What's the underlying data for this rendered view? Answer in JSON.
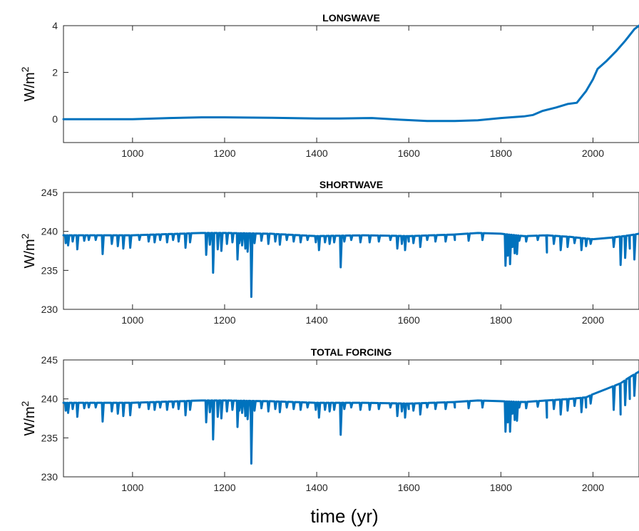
{
  "figure": {
    "xlabel": "time (yr)"
  },
  "colors": {
    "series": "#0072BD",
    "axis": "#262626",
    "background": "#ffffff"
  },
  "chart_data": [
    {
      "type": "line",
      "title": "LONGWAVE",
      "ylabel": "W/m",
      "ylabel_sup": "2",
      "xlim": [
        850,
        2100
      ],
      "ylim": [
        -1,
        4
      ],
      "xticks": [
        1000,
        1200,
        1400,
        1600,
        1800,
        2000
      ],
      "yticks": [
        0,
        2,
        4
      ],
      "grid": false,
      "legend": "none",
      "series": [
        {
          "baseline": [
            [
              850,
              0
            ],
            [
              1000,
              0
            ],
            [
              1080,
              0.05
            ],
            [
              1150,
              0.08
            ],
            [
              1200,
              0.08
            ],
            [
              1300,
              0.06
            ],
            [
              1400,
              0.03
            ],
            [
              1450,
              0.03
            ],
            [
              1520,
              0.05
            ],
            [
              1580,
              -0.02
            ],
            [
              1640,
              -0.08
            ],
            [
              1700,
              -0.08
            ],
            [
              1750,
              -0.05
            ],
            [
              1800,
              0.05
            ],
            [
              1850,
              0.12
            ],
            [
              1870,
              0.18
            ],
            [
              1890,
              0.35
            ],
            [
              1920,
              0.5
            ],
            [
              1945,
              0.65
            ],
            [
              1965,
              0.7
            ],
            [
              1985,
              1.2
            ],
            [
              2000,
              1.7
            ],
            [
              2010,
              2.15
            ],
            [
              2030,
              2.5
            ],
            [
              2050,
              2.9
            ],
            [
              2070,
              3.35
            ],
            [
              2090,
              3.85
            ],
            [
              2100,
              4.0
            ]
          ],
          "dips": []
        }
      ]
    },
    {
      "type": "line",
      "title": "SHORTWAVE",
      "ylabel": "W/m",
      "ylabel_sup": "2",
      "xlim": [
        850,
        2100
      ],
      "ylim": [
        230,
        245
      ],
      "xticks": [
        1000,
        1200,
        1400,
        1600,
        1800,
        2000
      ],
      "yticks": [
        230,
        235,
        240,
        245
      ],
      "grid": false,
      "legend": "none",
      "series": [
        {
          "baseline": [
            [
              850,
              239.5
            ],
            [
              1000,
              239.5
            ],
            [
              1150,
              239.8
            ],
            [
              1200,
              239.8
            ],
            [
              1300,
              239.7
            ],
            [
              1400,
              239.4
            ],
            [
              1500,
              239.5
            ],
            [
              1600,
              239.4
            ],
            [
              1700,
              239.6
            ],
            [
              1750,
              239.8
            ],
            [
              1800,
              239.7
            ],
            [
              1850,
              239.4
            ],
            [
              1900,
              239.5
            ],
            [
              1950,
              239.3
            ],
            [
              2000,
              239.0
            ],
            [
              2040,
              239.2
            ],
            [
              2080,
              239.5
            ],
            [
              2100,
              239.7
            ]
          ],
          "dips": [
            [
              855,
              238.5
            ],
            [
              860,
              238.2
            ],
            [
              870,
              238.7
            ],
            [
              880,
              237.7
            ],
            [
              895,
              238.8
            ],
            [
              905,
              238.9
            ],
            [
              920,
              238.9
            ],
            [
              935,
              237.1
            ],
            [
              955,
              238.4
            ],
            [
              968,
              238.1
            ],
            [
              980,
              237.8
            ],
            [
              995,
              237.9
            ],
            [
              1015,
              238.9
            ],
            [
              1035,
              238.7
            ],
            [
              1048,
              238.6
            ],
            [
              1060,
              238.9
            ],
            [
              1075,
              238.6
            ],
            [
              1088,
              238.9
            ],
            [
              1100,
              238.7
            ],
            [
              1115,
              237.9
            ],
            [
              1125,
              238.6
            ],
            [
              1160,
              237.0
            ],
            [
              1168,
              238.3
            ],
            [
              1175,
              234.7
            ],
            [
              1185,
              237.7
            ],
            [
              1193,
              237.5
            ],
            [
              1205,
              238.4
            ],
            [
              1217,
              238.6
            ],
            [
              1228,
              236.4
            ],
            [
              1232,
              238.5
            ],
            [
              1238,
              238.2
            ],
            [
              1245,
              237.8
            ],
            [
              1250,
              237.4
            ],
            [
              1258,
              231.6
            ],
            [
              1265,
              238.5
            ],
            [
              1280,
              238.8
            ],
            [
              1295,
              238.4
            ],
            [
              1310,
              238.7
            ],
            [
              1320,
              238.3
            ],
            [
              1335,
              238.9
            ],
            [
              1350,
              238.7
            ],
            [
              1365,
              238.6
            ],
            [
              1380,
              238.9
            ],
            [
              1398,
              238.6
            ],
            [
              1405,
              237.6
            ],
            [
              1418,
              238.6
            ],
            [
              1428,
              238.4
            ],
            [
              1438,
              238.6
            ],
            [
              1452,
              235.4
            ],
            [
              1460,
              238.7
            ],
            [
              1475,
              238.9
            ],
            [
              1495,
              238.6
            ],
            [
              1515,
              238.6
            ],
            [
              1535,
              238.7
            ],
            [
              1560,
              238.9
            ],
            [
              1575,
              237.8
            ],
            [
              1585,
              238.4
            ],
            [
              1592,
              237.6
            ],
            [
              1600,
              238.7
            ],
            [
              1610,
              238.5
            ],
            [
              1625,
              238.0
            ],
            [
              1640,
              238.9
            ],
            [
              1658,
              238.7
            ],
            [
              1680,
              238.7
            ],
            [
              1700,
              238.9
            ],
            [
              1730,
              238.8
            ],
            [
              1760,
              238.9
            ],
            [
              1810,
              235.6
            ],
            [
              1815,
              236.9
            ],
            [
              1820,
              235.8
            ],
            [
              1825,
              238.0
            ],
            [
              1830,
              237.2
            ],
            [
              1835,
              237.1
            ],
            [
              1840,
              238.8
            ],
            [
              1855,
              238.7
            ],
            [
              1880,
              238.9
            ],
            [
              1900,
              237.3
            ],
            [
              1915,
              238.4
            ],
            [
              1930,
              237.6
            ],
            [
              1945,
              238.0
            ],
            [
              1960,
              238.5
            ],
            [
              1975,
              237.6
            ],
            [
              1985,
              238.1
            ],
            [
              1995,
              238.4
            ],
            [
              2045,
              238.0
            ],
            [
              2060,
              235.7
            ],
            [
              2070,
              236.6
            ],
            [
              2080,
              237.8
            ],
            [
              2090,
              236.4
            ]
          ]
        }
      ]
    },
    {
      "type": "line",
      "title": "TOTAL FORCING",
      "ylabel": "W/m",
      "ylabel_sup": "2",
      "xlim": [
        850,
        2100
      ],
      "ylim": [
        230,
        245
      ],
      "xticks": [
        1000,
        1200,
        1400,
        1600,
        1800,
        2000
      ],
      "yticks": [
        230,
        235,
        240,
        245
      ],
      "grid": false,
      "legend": "none",
      "series": [
        {
          "baseline": [
            [
              850,
              239.5
            ],
            [
              1000,
              239.5
            ],
            [
              1150,
              239.8
            ],
            [
              1200,
              239.8
            ],
            [
              1300,
              239.7
            ],
            [
              1400,
              239.5
            ],
            [
              1500,
              239.5
            ],
            [
              1600,
              239.4
            ],
            [
              1700,
              239.6
            ],
            [
              1750,
              239.8
            ],
            [
              1800,
              239.7
            ],
            [
              1850,
              239.6
            ],
            [
              1900,
              239.8
            ],
            [
              1950,
              240.0
            ],
            [
              1985,
              240.2
            ],
            [
              2000,
              240.6
            ],
            [
              2030,
              241.3
            ],
            [
              2060,
              242.0
            ],
            [
              2080,
              242.8
            ],
            [
              2100,
              243.5
            ]
          ],
          "dips": [
            [
              855,
              238.5
            ],
            [
              860,
              238.2
            ],
            [
              870,
              238.7
            ],
            [
              880,
              237.7
            ],
            [
              895,
              238.8
            ],
            [
              905,
              238.9
            ],
            [
              920,
              238.9
            ],
            [
              935,
              237.1
            ],
            [
              955,
              238.4
            ],
            [
              968,
              238.1
            ],
            [
              980,
              237.8
            ],
            [
              995,
              237.9
            ],
            [
              1015,
              238.9
            ],
            [
              1035,
              238.7
            ],
            [
              1048,
              238.6
            ],
            [
              1060,
              238.9
            ],
            [
              1075,
              238.6
            ],
            [
              1088,
              238.9
            ],
            [
              1100,
              238.7
            ],
            [
              1115,
              237.9
            ],
            [
              1125,
              238.6
            ],
            [
              1160,
              237.0
            ],
            [
              1168,
              238.3
            ],
            [
              1175,
              234.8
            ],
            [
              1185,
              237.7
            ],
            [
              1193,
              237.5
            ],
            [
              1205,
              238.4
            ],
            [
              1217,
              238.6
            ],
            [
              1228,
              236.4
            ],
            [
              1232,
              238.5
            ],
            [
              1238,
              238.2
            ],
            [
              1245,
              237.8
            ],
            [
              1250,
              237.4
            ],
            [
              1258,
              231.7
            ],
            [
              1265,
              238.5
            ],
            [
              1280,
              238.8
            ],
            [
              1295,
              238.4
            ],
            [
              1310,
              238.7
            ],
            [
              1320,
              238.3
            ],
            [
              1335,
              238.9
            ],
            [
              1350,
              238.7
            ],
            [
              1365,
              238.6
            ],
            [
              1380,
              238.9
            ],
            [
              1398,
              238.6
            ],
            [
              1405,
              237.6
            ],
            [
              1418,
              238.6
            ],
            [
              1428,
              238.4
            ],
            [
              1438,
              238.6
            ],
            [
              1452,
              235.4
            ],
            [
              1460,
              238.7
            ],
            [
              1475,
              238.9
            ],
            [
              1495,
              238.6
            ],
            [
              1515,
              238.6
            ],
            [
              1535,
              238.7
            ],
            [
              1560,
              238.9
            ],
            [
              1575,
              237.8
            ],
            [
              1585,
              238.4
            ],
            [
              1592,
              237.6
            ],
            [
              1600,
              238.7
            ],
            [
              1610,
              238.5
            ],
            [
              1625,
              238.0
            ],
            [
              1640,
              238.9
            ],
            [
              1658,
              238.7
            ],
            [
              1680,
              238.7
            ],
            [
              1700,
              238.9
            ],
            [
              1730,
              238.8
            ],
            [
              1760,
              238.9
            ],
            [
              1810,
              235.8
            ],
            [
              1815,
              237.0
            ],
            [
              1820,
              235.8
            ],
            [
              1825,
              238.1
            ],
            [
              1830,
              237.3
            ],
            [
              1835,
              237.2
            ],
            [
              1840,
              238.9
            ],
            [
              1855,
              238.8
            ],
            [
              1880,
              239.0
            ],
            [
              1900,
              237.6
            ],
            [
              1915,
              238.7
            ],
            [
              1930,
              238.0
            ],
            [
              1945,
              238.5
            ],
            [
              1960,
              239.1
            ],
            [
              1975,
              238.3
            ],
            [
              1985,
              238.9
            ],
            [
              1995,
              239.4
            ],
            [
              2045,
              238.6
            ],
            [
              2060,
              238.0
            ],
            [
              2070,
              239.2
            ],
            [
              2080,
              240.0
            ],
            [
              2090,
              240.4
            ]
          ]
        }
      ]
    }
  ]
}
